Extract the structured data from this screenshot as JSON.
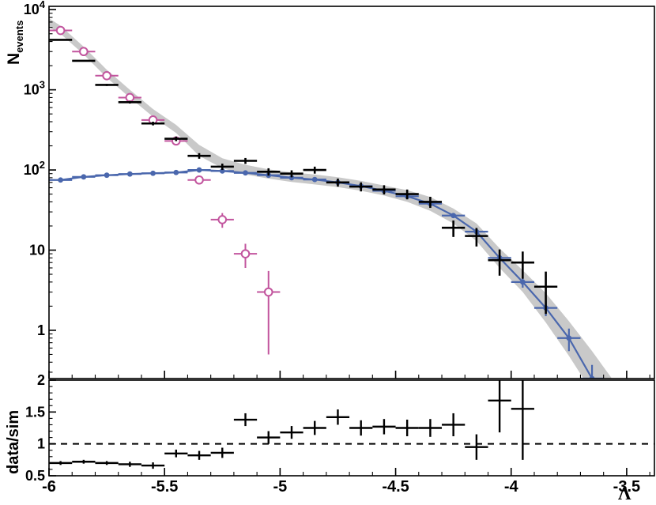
{
  "chart_data": {
    "type": "scatter",
    "title": "",
    "x_axis": {
      "label": "Λ",
      "min": -6,
      "max": -3.38,
      "minor_step": 0.1,
      "ticks": [
        {
          "v": -6,
          "label": "-6"
        },
        {
          "v": -5.5,
          "label": "-5.5"
        },
        {
          "v": -5,
          "label": "-5"
        },
        {
          "v": -4.5,
          "label": "-4.5"
        },
        {
          "v": -4,
          "label": "-4"
        },
        {
          "v": -3.5,
          "label": "-3.5"
        }
      ]
    },
    "main_panel": {
      "y_axis": {
        "label": "N",
        "label_sub": "events",
        "scale": "log",
        "min": 0.25,
        "max": 11000,
        "ticks": [
          {
            "v": 1,
            "base": "1",
            "exp": ""
          },
          {
            "v": 10,
            "base": "10",
            "exp": ""
          },
          {
            "v": 100,
            "base": "10",
            "exp": "2"
          },
          {
            "v": 1000,
            "base": "10",
            "exp": "3"
          },
          {
            "v": 10000,
            "base": "10",
            "exp": "4"
          }
        ]
      },
      "series": [
        {
          "name": "sim-uncertainty-band",
          "type": "band",
          "color": "#c9c9c9",
          "x": [
            -6.0,
            -5.95,
            -5.85,
            -5.75,
            -5.65,
            -5.55,
            -5.45,
            -5.35,
            -5.25,
            -5.15,
            -5.05,
            -4.95,
            -4.85,
            -4.75,
            -4.65,
            -4.55,
            -4.45,
            -4.35,
            -4.25,
            -4.15,
            -4.05,
            -3.95,
            -3.85,
            -3.75,
            -3.65,
            -3.55,
            -3.45
          ],
          "hi": [
            7800,
            6300,
            3450,
            1780,
            1000,
            575,
            365,
            205,
            140,
            116,
            102,
            93,
            88,
            81,
            73,
            64,
            56,
            46,
            33,
            21.5,
            10.5,
            5.6,
            2.9,
            1.3,
            0.55,
            0.22,
            0.09
          ],
          "lo": [
            6100,
            5000,
            2760,
            1420,
            800,
            460,
            290,
            150,
            105,
            88,
            78,
            71,
            66,
            61,
            55,
            48,
            40,
            31,
            21.5,
            13,
            6,
            3,
            1.25,
            0.48,
            0.17,
            0.055,
            0.018
          ]
        },
        {
          "name": "sim-background",
          "type": "line-markers",
          "marker": "filled-circle",
          "color": "#4a67ad",
          "bin_half_width": 0.05,
          "x": [
            -5.95,
            -5.85,
            -5.75,
            -5.65,
            -5.55,
            -5.45,
            -5.35,
            -5.25,
            -5.15,
            -5.05,
            -4.95,
            -4.85,
            -4.75,
            -4.65,
            -4.55,
            -4.45,
            -4.35,
            -4.25,
            -4.15,
            -4.05,
            -3.95,
            -3.85,
            -3.75,
            -3.65
          ],
          "y": [
            75,
            82,
            86,
            89,
            91,
            93,
            100,
            97,
            92,
            86,
            80,
            76,
            70,
            63,
            55,
            47,
            38,
            27,
            17,
            8,
            4,
            1.9,
            0.8,
            0.25
          ],
          "yerr": [
            3,
            3,
            3,
            3,
            3,
            3,
            3,
            3,
            3,
            3,
            2.8,
            2.7,
            2.5,
            2.4,
            2.2,
            2,
            1.8,
            1.5,
            1.2,
            0.8,
            0.6,
            0.4,
            0.25,
            0.12
          ]
        },
        {
          "name": "sim-signal",
          "type": "markers",
          "marker": "open-circle",
          "color": "#c2559e",
          "bin_half_width": 0.05,
          "x": [
            -5.95,
            -5.85,
            -5.75,
            -5.65,
            -5.55,
            -5.45,
            -5.35,
            -5.25,
            -5.15,
            -5.05
          ],
          "y": [
            5500,
            3000,
            1500,
            800,
            420,
            230,
            75,
            24,
            9,
            3
          ],
          "yerr": [
            75,
            55,
            39,
            28,
            21,
            15,
            9,
            5,
            3,
            2.5
          ]
        },
        {
          "name": "data",
          "type": "markers",
          "marker": "cross",
          "color": "#000000",
          "bin_half_width": 0.05,
          "x": [
            -5.95,
            -5.85,
            -5.75,
            -5.65,
            -5.55,
            -5.45,
            -5.35,
            -5.25,
            -5.15,
            -5.05,
            -4.95,
            -4.85,
            -4.75,
            -4.65,
            -4.55,
            -4.45,
            -4.35,
            -4.25,
            -4.15,
            -4.05,
            -3.95,
            -3.85
          ],
          "y": [
            4200,
            2300,
            1150,
            700,
            380,
            245,
            150,
            110,
            130,
            95,
            90,
            100,
            70,
            62,
            57,
            50,
            40,
            19,
            15,
            7.5,
            7,
            3.5
          ],
          "yerr": [
            65,
            48,
            34,
            26,
            20,
            16,
            12,
            10,
            11,
            10,
            9,
            10,
            8,
            8,
            7.5,
            7,
            6.3,
            4.4,
            3.9,
            2.7,
            2.6,
            1.9
          ]
        }
      ]
    },
    "ratio_panel": {
      "y_axis": {
        "label": "data/sim",
        "min": 0.5,
        "max": 2.0,
        "minor_step": 0.1,
        "ticks": [
          {
            "v": 0.5,
            "label": "0.5"
          },
          {
            "v": 1,
            "label": "1"
          },
          {
            "v": 1.5,
            "label": "1.5"
          },
          {
            "v": 2,
            "label": "2"
          }
        ]
      },
      "reference_line": 1.0,
      "series": {
        "name": "data-over-sim",
        "color": "#000000",
        "bin_half_width": 0.05,
        "x": [
          -5.95,
          -5.85,
          -5.75,
          -5.65,
          -5.55,
          -5.45,
          -5.35,
          -5.25,
          -5.15,
          -5.05,
          -4.95,
          -4.85,
          -4.75,
          -4.65,
          -4.55,
          -4.45,
          -4.35,
          -4.25,
          -4.15,
          -4.05,
          -3.95
        ],
        "y": [
          0.7,
          0.72,
          0.7,
          0.68,
          0.66,
          0.85,
          0.82,
          0.86,
          1.38,
          1.1,
          1.18,
          1.25,
          1.42,
          1.25,
          1.27,
          1.25,
          1.25,
          1.3,
          0.95,
          1.68,
          1.55
        ],
        "yerr": [
          0.03,
          0.03,
          0.03,
          0.04,
          0.05,
          0.06,
          0.07,
          0.08,
          0.1,
          0.1,
          0.1,
          0.11,
          0.12,
          0.12,
          0.12,
          0.13,
          0.14,
          0.18,
          0.2,
          0.5,
          0.8
        ]
      }
    }
  }
}
